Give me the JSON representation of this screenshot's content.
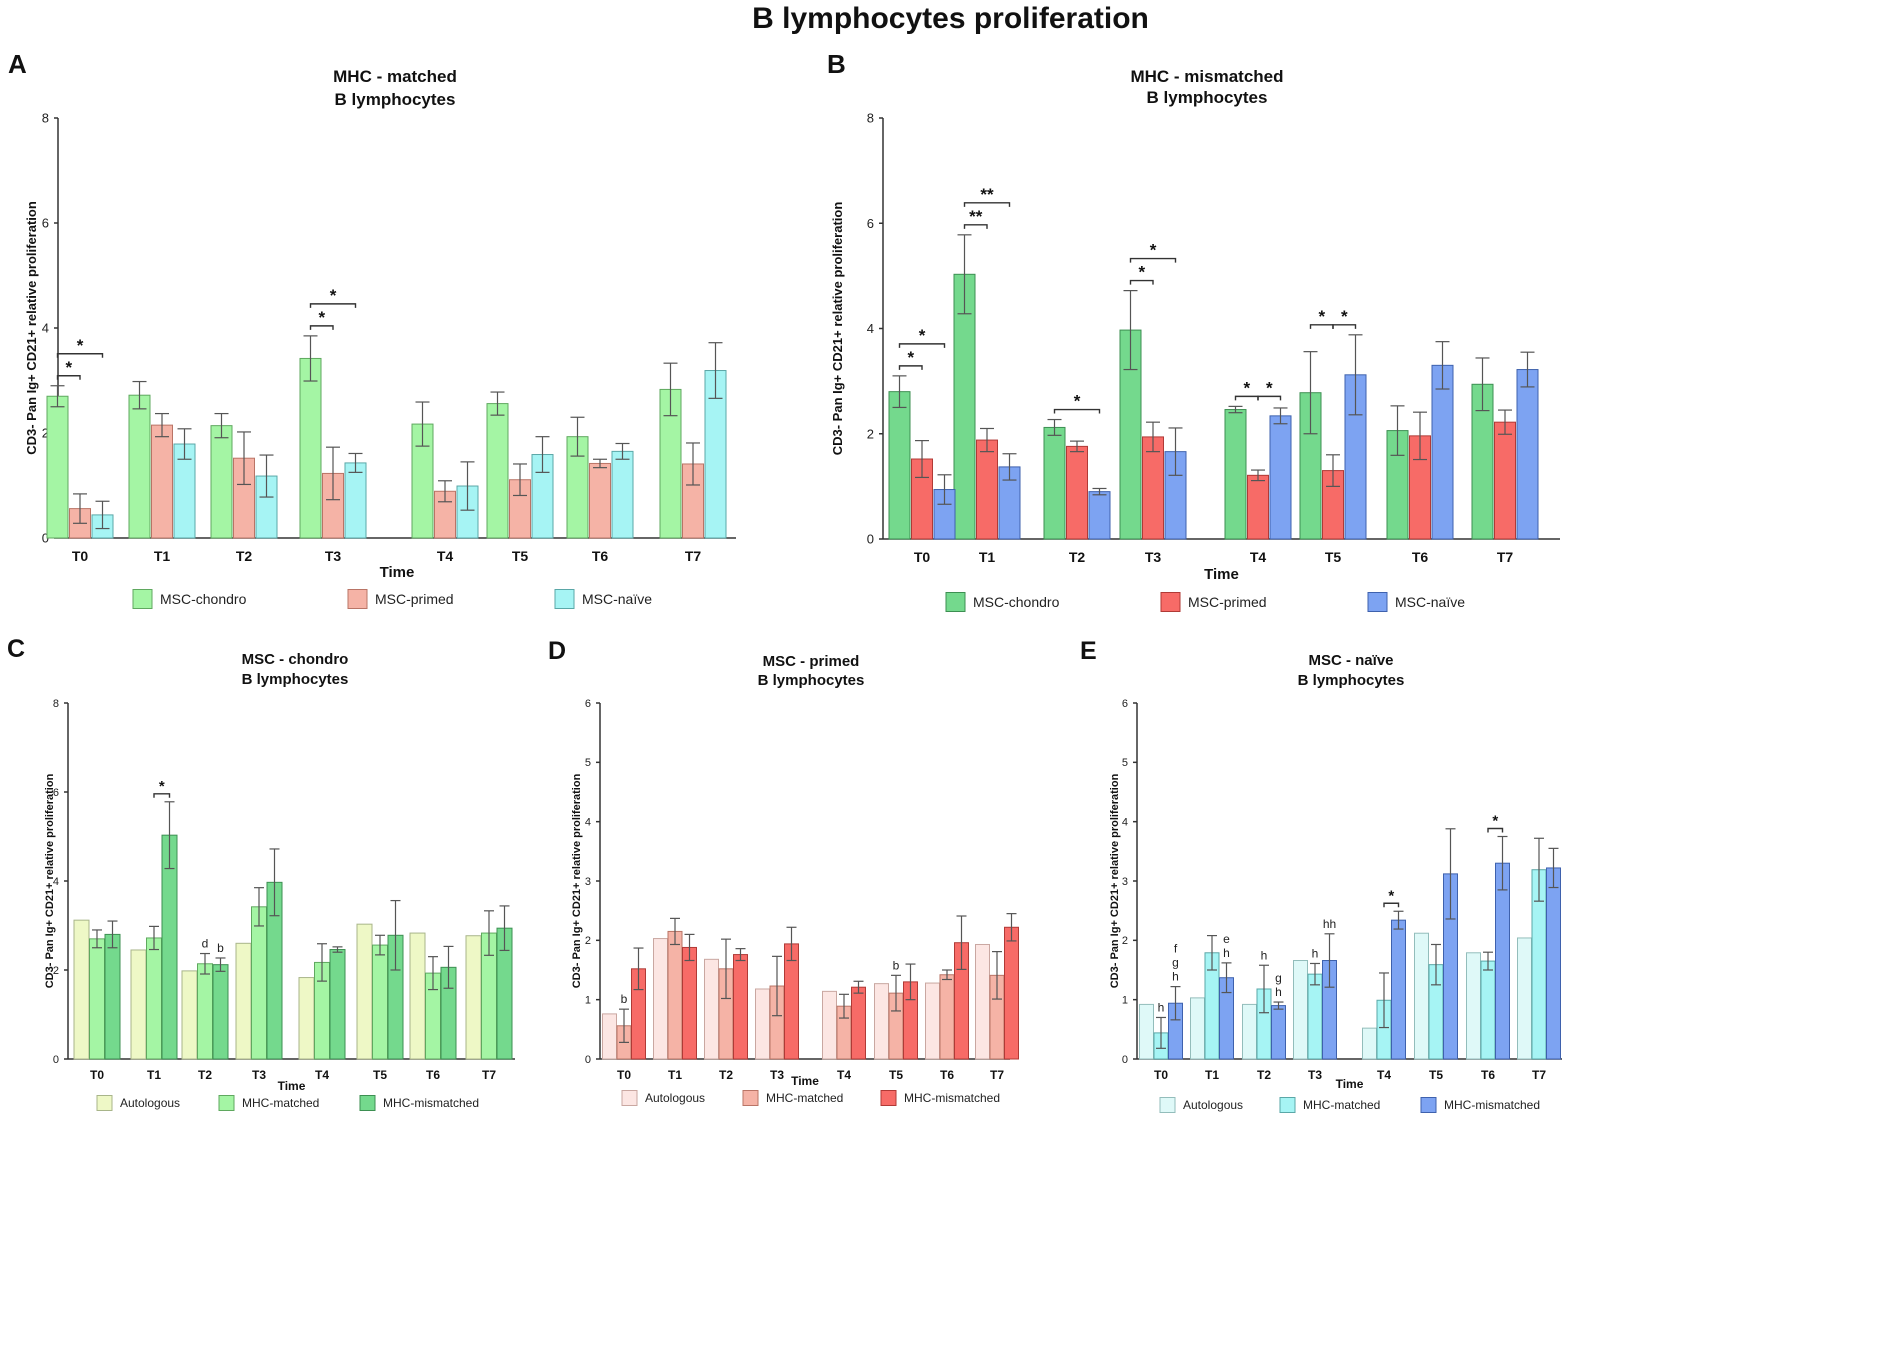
{
  "title": "B lymphocytes proliferation",
  "ylabel": "CD3- Pan Ig+ CD21+ relative proliferation",
  "xlabel": "Time",
  "chart_data": [
    {
      "id": "A",
      "type": "bar",
      "panel_letter": "A",
      "title": [
        "MHC - matched",
        "B lymphocytes"
      ],
      "xlabel": "Time",
      "ylabel": "CD3- Pan Ig+ CD21+ relative proliferation",
      "ylim": [
        0,
        8
      ],
      "yticks": [
        0,
        2,
        4,
        6,
        8
      ],
      "categories": [
        "T0",
        "T1",
        "T2",
        "T3",
        "T4",
        "T5",
        "T6",
        "T7"
      ],
      "series": [
        {
          "name": "MSC-chondro",
          "color": "#A4F5A4",
          "stroke": "#5fa85f",
          "values": [
            2.7,
            2.72,
            2.14,
            3.42,
            2.17,
            2.56,
            1.93,
            2.83
          ],
          "errors": [
            0.2,
            0.26,
            0.23,
            0.43,
            0.42,
            0.22,
            0.37,
            0.5
          ]
        },
        {
          "name": "MSC-primed",
          "color": "#F5B3A6",
          "stroke": "#b97466",
          "values": [
            0.56,
            2.15,
            1.52,
            1.23,
            0.89,
            1.11,
            1.42,
            1.41
          ],
          "errors": [
            0.28,
            0.22,
            0.5,
            0.5,
            0.2,
            0.3,
            0.08,
            0.4
          ]
        },
        {
          "name": "MSC-naïve",
          "color": "#A6F4F4",
          "stroke": "#5aa7a7",
          "values": [
            0.44,
            1.79,
            1.18,
            1.43,
            0.99,
            1.59,
            1.65,
            3.19
          ],
          "errors": [
            0.26,
            0.29,
            0.4,
            0.18,
            0.46,
            0.34,
            0.15,
            0.53
          ]
        }
      ],
      "significance": [
        {
          "category": "T0",
          "from": 0,
          "to": 1,
          "level": 1,
          "label": "*"
        },
        {
          "category": "T0",
          "from": 0,
          "to": 2,
          "level": 2,
          "label": "*"
        },
        {
          "category": "T3",
          "from": 0,
          "to": 1,
          "level": 1,
          "label": "*"
        },
        {
          "category": "T3",
          "from": 0,
          "to": 2,
          "level": 2,
          "label": "*"
        }
      ]
    },
    {
      "id": "B",
      "type": "bar",
      "panel_letter": "B",
      "title": [
        "MHC - mismatched",
        "B lymphocytes"
      ],
      "xlabel": "Time",
      "ylabel": "CD3- Pan Ig+ CD21+ relative proliferation",
      "ylim": [
        0,
        8
      ],
      "yticks": [
        0,
        2,
        4,
        6,
        8
      ],
      "categories": [
        "T0",
        "T1",
        "T2",
        "T3",
        "T4",
        "T5",
        "T6",
        "T7"
      ],
      "series": [
        {
          "name": "MSC-chondro",
          "color": "#74D98D",
          "stroke": "#3d8f52",
          "values": [
            2.8,
            5.03,
            2.12,
            3.97,
            2.46,
            2.78,
            2.06,
            2.94
          ],
          "errors": [
            0.3,
            0.75,
            0.15,
            0.75,
            0.06,
            0.78,
            0.47,
            0.5
          ]
        },
        {
          "name": "MSC-primed",
          "color": "#F76B67",
          "stroke": "#b03a36",
          "values": [
            1.52,
            1.88,
            1.76,
            1.94,
            1.21,
            1.3,
            1.96,
            2.22
          ],
          "errors": [
            0.35,
            0.22,
            0.1,
            0.28,
            0.1,
            0.3,
            0.45,
            0.23
          ]
        },
        {
          "name": "MSC-naïve",
          "color": "#7DA3F2",
          "stroke": "#3e61ad",
          "values": [
            0.94,
            1.37,
            0.9,
            1.66,
            2.34,
            3.12,
            3.3,
            3.22
          ],
          "errors": [
            0.28,
            0.25,
            0.06,
            0.45,
            0.15,
            0.76,
            0.45,
            0.33
          ]
        }
      ],
      "significance": [
        {
          "category": "T0",
          "from": 0,
          "to": 1,
          "level": 1,
          "label": "*"
        },
        {
          "category": "T0",
          "from": 0,
          "to": 2,
          "level": 2,
          "label": "*"
        },
        {
          "category": "T1",
          "from": 0,
          "to": 1,
          "level": 1,
          "label": "**"
        },
        {
          "category": "T1",
          "from": 0,
          "to": 2,
          "level": 2,
          "label": "**"
        },
        {
          "category": "T2",
          "from": 0,
          "to": 2,
          "level": 1,
          "label": "*"
        },
        {
          "category": "T3",
          "from": 0,
          "to": 1,
          "level": 1,
          "label": "*"
        },
        {
          "category": "T3",
          "from": 0,
          "to": 2,
          "level": 2,
          "label": "*"
        },
        {
          "category": "T4",
          "from": 0,
          "to": 1,
          "level": 1,
          "label": "*"
        },
        {
          "category": "T4",
          "from": 1,
          "to": 2,
          "level": 1,
          "label": "*"
        },
        {
          "category": "T5",
          "from": 0,
          "to": 1,
          "level": 1,
          "label": "*"
        },
        {
          "category": "T5",
          "from": 1,
          "to": 2,
          "level": 1,
          "label": "*"
        }
      ]
    },
    {
      "id": "C",
      "type": "bar",
      "panel_letter": "C",
      "title": [
        "MSC - chondro",
        "B lymphocytes"
      ],
      "xlabel": "Time",
      "ylabel": "CD3- Pan Ig+ CD21+ relative proliferation",
      "ylim": [
        0,
        8
      ],
      "yticks": [
        0,
        2,
        4,
        6,
        8
      ],
      "categories": [
        "T0",
        "T1",
        "T2",
        "T3",
        "T4",
        "T5",
        "T6",
        "T7"
      ],
      "series": [
        {
          "name": "Autologous",
          "color": "#EEF8C6",
          "stroke": "#a8b58a",
          "values": [
            3.12,
            2.45,
            1.98,
            2.6,
            1.83,
            3.03,
            2.83,
            2.77
          ],
          "errors": [
            null,
            null,
            null,
            null,
            null,
            null,
            null,
            null
          ]
        },
        {
          "name": "MHC-matched",
          "color": "#A4F5A4",
          "stroke": "#5fa85f",
          "values": [
            2.7,
            2.72,
            2.14,
            3.42,
            2.17,
            2.56,
            1.93,
            2.83
          ],
          "errors": [
            0.2,
            0.26,
            0.23,
            0.43,
            0.42,
            0.22,
            0.37,
            0.5
          ]
        },
        {
          "name": "MHC-mismatched",
          "color": "#74D98D",
          "stroke": "#3d8f52",
          "values": [
            2.8,
            5.03,
            2.12,
            3.97,
            2.46,
            2.78,
            2.06,
            2.94
          ],
          "errors": [
            0.3,
            0.75,
            0.15,
            0.75,
            0.06,
            0.78,
            0.47,
            0.5
          ]
        }
      ],
      "significance": [
        {
          "category": "T1",
          "from": 1,
          "to": 2,
          "level": 1,
          "label": "*"
        }
      ],
      "letters": [
        {
          "category": "T2",
          "series": 1,
          "labels": [
            "d"
          ]
        },
        {
          "category": "T2",
          "series": 2,
          "labels": [
            "b"
          ]
        }
      ]
    },
    {
      "id": "D",
      "type": "bar",
      "panel_letter": "D",
      "title": [
        "MSC - primed",
        "B lymphocytes"
      ],
      "xlabel": "Time",
      "ylabel": "CD3- Pan Ig+ CD21+ relative proliferation",
      "ylim": [
        0,
        6
      ],
      "yticks": [
        0,
        1,
        2,
        3,
        4,
        5,
        6
      ],
      "categories": [
        "T0",
        "T1",
        "T2",
        "T3",
        "T4",
        "T5",
        "T6",
        "T7"
      ],
      "series": [
        {
          "name": "Autologous",
          "color": "#FCE6E3",
          "stroke": "#c9a7a1",
          "values": [
            0.76,
            2.03,
            1.68,
            1.18,
            1.14,
            1.27,
            1.28,
            1.93
          ],
          "errors": [
            null,
            null,
            null,
            null,
            null,
            null,
            null,
            null
          ]
        },
        {
          "name": "MHC-matched",
          "color": "#F5B3A6",
          "stroke": "#b97466",
          "values": [
            0.56,
            2.15,
            1.52,
            1.23,
            0.89,
            1.11,
            1.42,
            1.41
          ],
          "errors": [
            0.28,
            0.22,
            0.5,
            0.5,
            0.2,
            0.3,
            0.08,
            0.4
          ]
        },
        {
          "name": "MHC-mismatched",
          "color": "#F76B67",
          "stroke": "#b03a36",
          "values": [
            1.52,
            1.88,
            1.76,
            1.94,
            1.21,
            1.3,
            1.96,
            2.22
          ],
          "errors": [
            0.35,
            0.22,
            0.1,
            0.28,
            0.1,
            0.3,
            0.45,
            0.23
          ]
        }
      ],
      "significance": [],
      "letters": [
        {
          "category": "T0",
          "series": 1,
          "labels": [
            "b"
          ]
        },
        {
          "category": "T5",
          "series": 1,
          "labels": [
            "b"
          ]
        }
      ]
    },
    {
      "id": "E",
      "type": "bar",
      "panel_letter": "E",
      "title": [
        "MSC - naïve",
        "B lymphocytes"
      ],
      "xlabel": "Time",
      "ylabel": "CD3- Pan Ig+ CD21+ relative proliferation",
      "ylim": [
        0,
        6
      ],
      "yticks": [
        0,
        1,
        2,
        3,
        4,
        5,
        6
      ],
      "categories": [
        "T0",
        "T1",
        "T2",
        "T3",
        "T4",
        "T5",
        "T6",
        "T7"
      ],
      "series": [
        {
          "name": "Autologous",
          "color": "#DFF9F8",
          "stroke": "#93bdbb",
          "values": [
            0.92,
            1.03,
            0.92,
            1.66,
            0.52,
            2.12,
            1.79,
            2.04
          ],
          "errors": [
            null,
            null,
            null,
            null,
            null,
            null,
            null,
            null
          ]
        },
        {
          "name": "MHC-matched",
          "color": "#A6F4F4",
          "stroke": "#5aa7a7",
          "values": [
            0.44,
            1.79,
            1.18,
            1.43,
            0.99,
            1.59,
            1.65,
            3.19
          ],
          "errors": [
            0.26,
            0.29,
            0.4,
            0.18,
            0.46,
            0.34,
            0.15,
            0.53
          ]
        },
        {
          "name": "MHC-mismatched",
          "color": "#7DA3F2",
          "stroke": "#3e61ad",
          "values": [
            0.94,
            1.37,
            0.9,
            1.66,
            2.34,
            3.12,
            3.3,
            3.22
          ],
          "errors": [
            0.28,
            0.25,
            0.06,
            0.45,
            0.15,
            0.76,
            0.45,
            0.33
          ]
        }
      ],
      "significance": [
        {
          "category": "T4",
          "from": 1,
          "to": 2,
          "level": 1,
          "label": "*"
        },
        {
          "category": "T6",
          "from": 1,
          "to": 2,
          "level": 1,
          "label": "*"
        }
      ],
      "letters": [
        {
          "category": "T0",
          "series": 1,
          "labels": [
            "h"
          ]
        },
        {
          "category": "T0",
          "series": 2,
          "labels": [
            "f",
            "g",
            "h"
          ]
        },
        {
          "category": "T1",
          "series": 2,
          "labels": [
            "e",
            "h"
          ]
        },
        {
          "category": "T2",
          "series": 1,
          "labels": [
            "h"
          ]
        },
        {
          "category": "T2",
          "series": 2,
          "labels": [
            "g",
            "h"
          ]
        },
        {
          "category": "T3",
          "series": 1,
          "labels": [
            "h"
          ]
        },
        {
          "category": "T3",
          "series": 2,
          "labels": [
            "hh"
          ]
        }
      ]
    }
  ]
}
